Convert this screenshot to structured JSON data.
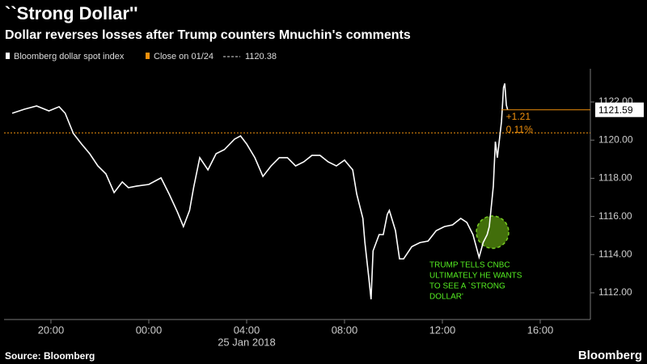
{
  "chart_data": {
    "type": "line",
    "title": "``Strong Dollar''",
    "subtitle": "Dollar reverses losses after Trump counters Mnuchin's comments",
    "source": "Source: Bloomberg",
    "brand": "Bloomberg",
    "date_label": "25 Jan 2018",
    "series": [
      {
        "name": "Bloomberg dollar spot index",
        "color": "#ffffff",
        "x": [
          "2018-01-24T18:25",
          "2018-01-24T18:55",
          "2018-01-24T19:25",
          "2018-01-24T19:55",
          "2018-01-24T20:20",
          "2018-01-24T20:35",
          "2018-01-24T20:55",
          "2018-01-24T21:15",
          "2018-01-24T21:35",
          "2018-01-24T21:55",
          "2018-01-24T22:15",
          "2018-01-24T22:35",
          "2018-01-24T22:55",
          "2018-01-24T23:10",
          "2018-01-24T23:30",
          "2018-01-25T00:00",
          "2018-01-25T00:30",
          "2018-01-25T00:50",
          "2018-01-25T01:10",
          "2018-01-25T01:25",
          "2018-01-25T01:40",
          "2018-01-25T01:50",
          "2018-01-25T02:05",
          "2018-01-25T02:25",
          "2018-01-25T02:45",
          "2018-01-25T03:05",
          "2018-01-25T03:30",
          "2018-01-25T03:45",
          "2018-01-25T04:00",
          "2018-01-25T04:20",
          "2018-01-25T04:40",
          "2018-01-25T05:00",
          "2018-01-25T05:20",
          "2018-01-25T05:40",
          "2018-01-25T06:00",
          "2018-01-25T06:20",
          "2018-01-25T06:40",
          "2018-01-25T07:00",
          "2018-01-25T07:20",
          "2018-01-25T07:40",
          "2018-01-25T08:00",
          "2018-01-25T08:20",
          "2018-01-25T08:30",
          "2018-01-25T08:45",
          "2018-01-25T08:50",
          "2018-01-25T09:00",
          "2018-01-25T09:05",
          "2018-01-25T09:10",
          "2018-01-25T09:25",
          "2018-01-25T09:35",
          "2018-01-25T09:45",
          "2018-01-25T09:50",
          "2018-01-25T10:05",
          "2018-01-25T10:15",
          "2018-01-25T10:25",
          "2018-01-25T10:45",
          "2018-01-25T11:05",
          "2018-01-25T11:25",
          "2018-01-25T11:45",
          "2018-01-25T12:05",
          "2018-01-25T12:25",
          "2018-01-25T12:45",
          "2018-01-25T13:00",
          "2018-01-25T13:15",
          "2018-01-25T13:30",
          "2018-01-25T13:40",
          "2018-01-25T13:50",
          "2018-01-25T13:55",
          "2018-01-25T14:05",
          "2018-01-25T14:10",
          "2018-01-25T14:15",
          "2018-01-25T14:25",
          "2018-01-25T14:30",
          "2018-01-25T14:33",
          "2018-01-25T14:37",
          "2018-01-25T14:40"
        ],
        "values": [
          1121.41,
          1121.62,
          1121.79,
          1121.53,
          1121.75,
          1121.41,
          1120.35,
          1119.8,
          1119.29,
          1118.65,
          1118.23,
          1117.25,
          1117.81,
          1117.51,
          1117.59,
          1117.68,
          1118.02,
          1117.17,
          1116.24,
          1115.47,
          1116.32,
          1117.51,
          1119.08,
          1118.44,
          1119.29,
          1119.5,
          1120.05,
          1120.22,
          1119.8,
          1119.08,
          1118.1,
          1118.65,
          1119.08,
          1119.08,
          1118.65,
          1118.86,
          1119.2,
          1119.2,
          1118.86,
          1118.65,
          1118.95,
          1118.44,
          1117.17,
          1115.9,
          1114.63,
          1112.72,
          1111.66,
          1114.2,
          1115.05,
          1115.05,
          1116.11,
          1116.32,
          1115.26,
          1113.78,
          1113.78,
          1114.42,
          1114.63,
          1114.71,
          1115.26,
          1115.47,
          1115.56,
          1115.9,
          1115.69,
          1115.05,
          1113.86,
          1114.63,
          1115.05,
          1115.47,
          1117.59,
          1119.92,
          1119.08,
          1120.98,
          1122.76,
          1122.97,
          1121.83,
          1121.59
        ]
      }
    ],
    "reference_line": {
      "name": "Close on 01/24",
      "value": 1120.38,
      "color": "#f0900c"
    },
    "change_labels": [
      "+1.21",
      "0.11%"
    ],
    "annotation": [
      "TRUMP TELLS CNBC",
      "ULTIMATELY HE WANTS",
      "TO SEE A `STRONG",
      "DOLLAR'"
    ],
    "annotation_color": "#55ee22",
    "xlim": [
      "2018-01-24T18:05",
      "2018-01-25T18:03"
    ],
    "xticks": [
      {
        "value": "2018-01-24T20:00",
        "label": "20:00"
      },
      {
        "value": "2018-01-25T00:00",
        "label": "00:00"
      },
      {
        "value": "2018-01-25T04:00",
        "label": "04:00"
      },
      {
        "value": "2018-01-25T08:00",
        "label": "08:00"
      },
      {
        "value": "2018-01-25T12:00",
        "label": "12:00"
      },
      {
        "value": "2018-01-25T16:00",
        "label": "16:00"
      }
    ],
    "ylim": [
      1110.6,
      1123.74
    ],
    "yticks": [
      {
        "value": 1112,
        "label": "1112.00"
      },
      {
        "value": 1114,
        "label": "1114.00"
      },
      {
        "value": 1116,
        "label": "1116.00"
      },
      {
        "value": 1118,
        "label": "1118.00"
      },
      {
        "value": 1120,
        "label": "1120.00"
      },
      {
        "value": 1122,
        "label": "1122.00"
      }
    ]
  }
}
